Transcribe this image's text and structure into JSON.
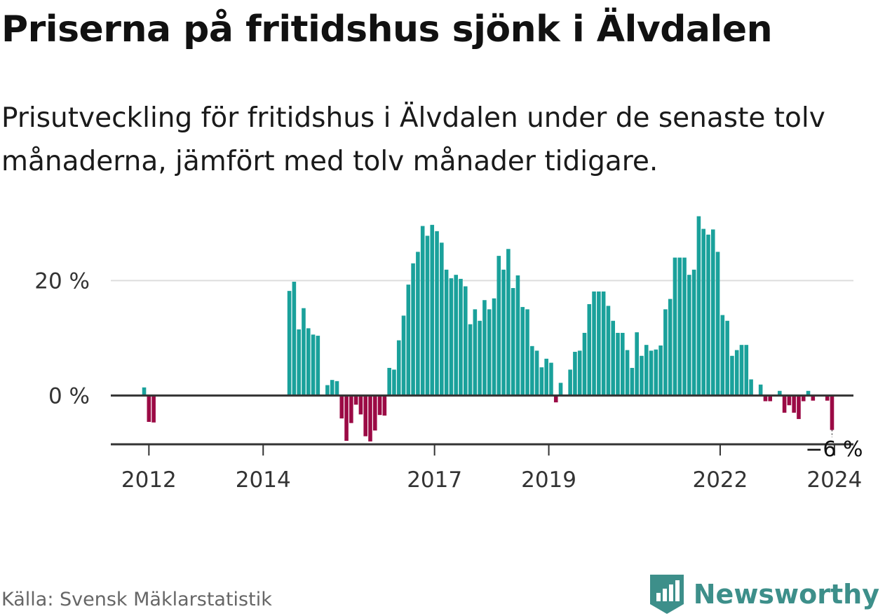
{
  "header": {
    "title": "Priserna på fritidshus sjönk i Älvdalen",
    "subtitle": "Prisutveckling för fritidshus i Älvdalen under de senaste tolv månaderna, jämfört med tolv månader tidigare."
  },
  "footer": {
    "source": "Källa: Svensk Mäklarstatistik",
    "brand": "Newsworthy"
  },
  "colors": {
    "positive": "#1aa19b",
    "negative": "#9b0a45",
    "grid": "#dddddd",
    "axis": "#333333",
    "brand": "#3d8f8a"
  },
  "chart_data": {
    "type": "bar",
    "title": "Priserna på fritidshus sjönk i Älvdalen",
    "xlabel": "",
    "ylabel": "",
    "x_domain": [
      2011.333,
      2024.333
    ],
    "ylim": [
      -8.5,
      32
    ],
    "y_ticks": [
      {
        "value": 0,
        "label": "0 %"
      },
      {
        "value": 20,
        "label": "20 %"
      }
    ],
    "x_ticks": [
      {
        "value": 2012,
        "label": "2012"
      },
      {
        "value": 2014,
        "label": "2014"
      },
      {
        "value": 2017,
        "label": "2017"
      },
      {
        "value": 2019,
        "label": "2019"
      },
      {
        "value": 2022,
        "label": "2022"
      },
      {
        "value": 2024,
        "label": "2024"
      }
    ],
    "annotation": {
      "text": "−6 %",
      "value": -6
    },
    "series": [
      {
        "name": "Prisutveckling",
        "points": [
          [
            2011.9167,
            1.4
          ],
          [
            2012.0,
            -4.6
          ],
          [
            2012.0833,
            -4.7
          ],
          [
            2014.4583,
            18.2
          ],
          [
            2014.5417,
            19.8
          ],
          [
            2014.625,
            11.5
          ],
          [
            2014.7083,
            15.2
          ],
          [
            2014.7917,
            11.7
          ],
          [
            2014.875,
            10.6
          ],
          [
            2014.9583,
            10.4
          ],
          [
            2015.125,
            1.8
          ],
          [
            2015.2083,
            2.7
          ],
          [
            2015.2917,
            2.5
          ],
          [
            2015.375,
            -4.0
          ],
          [
            2015.4583,
            -7.9
          ],
          [
            2015.5417,
            -4.8
          ],
          [
            2015.625,
            -1.6
          ],
          [
            2015.7083,
            -3.3
          ],
          [
            2015.7917,
            -7.1
          ],
          [
            2015.875,
            -8.0
          ],
          [
            2015.9583,
            -6.1
          ],
          [
            2016.0417,
            -3.4
          ],
          [
            2016.125,
            -3.5
          ],
          [
            2016.2083,
            4.8
          ],
          [
            2016.2917,
            4.5
          ],
          [
            2016.375,
            9.6
          ],
          [
            2016.4583,
            13.9
          ],
          [
            2016.5417,
            19.3
          ],
          [
            2016.625,
            23.0
          ],
          [
            2016.7083,
            25.0
          ],
          [
            2016.7917,
            29.5
          ],
          [
            2016.875,
            27.8
          ],
          [
            2016.9583,
            29.7
          ],
          [
            2017.0417,
            28.6
          ],
          [
            2017.125,
            26.6
          ],
          [
            2017.2083,
            21.9
          ],
          [
            2017.2917,
            20.4
          ],
          [
            2017.375,
            21.0
          ],
          [
            2017.4583,
            20.3
          ],
          [
            2017.5417,
            19.0
          ],
          [
            2017.625,
            12.4
          ],
          [
            2017.7083,
            15.0
          ],
          [
            2017.7917,
            13.0
          ],
          [
            2017.875,
            16.6
          ],
          [
            2017.9583,
            15.0
          ],
          [
            2018.0417,
            16.9
          ],
          [
            2018.125,
            24.3
          ],
          [
            2018.2083,
            21.9
          ],
          [
            2018.2917,
            25.5
          ],
          [
            2018.375,
            18.7
          ],
          [
            2018.4583,
            20.9
          ],
          [
            2018.5417,
            15.4
          ],
          [
            2018.625,
            15.0
          ],
          [
            2018.7083,
            8.6
          ],
          [
            2018.7917,
            7.8
          ],
          [
            2018.875,
            4.9
          ],
          [
            2018.9583,
            6.4
          ],
          [
            2019.0417,
            5.7
          ],
          [
            2019.125,
            -1.2
          ],
          [
            2019.2083,
            2.2
          ],
          [
            2019.3751,
            4.5
          ],
          [
            2019.4583,
            7.6
          ],
          [
            2019.5417,
            7.8
          ],
          [
            2019.625,
            10.9
          ],
          [
            2019.7083,
            15.9
          ],
          [
            2019.7917,
            18.1
          ],
          [
            2019.875,
            18.1
          ],
          [
            2019.9583,
            18.1
          ],
          [
            2020.0417,
            15.6
          ],
          [
            2020.125,
            13.0
          ],
          [
            2020.2083,
            10.9
          ],
          [
            2020.2917,
            10.9
          ],
          [
            2020.375,
            7.9
          ],
          [
            2020.4583,
            4.8
          ],
          [
            2020.5417,
            11.0
          ],
          [
            2020.625,
            6.9
          ],
          [
            2020.7083,
            8.8
          ],
          [
            2020.7917,
            7.8
          ],
          [
            2020.875,
            8.0
          ],
          [
            2020.9583,
            8.7
          ],
          [
            2021.0417,
            15.0
          ],
          [
            2021.125,
            16.8
          ],
          [
            2021.2083,
            24.0
          ],
          [
            2021.2917,
            24.0
          ],
          [
            2021.375,
            24.0
          ],
          [
            2021.4583,
            21.0
          ],
          [
            2021.5417,
            21.9
          ],
          [
            2021.625,
            31.2
          ],
          [
            2021.7083,
            29.0
          ],
          [
            2021.7917,
            28.0
          ],
          [
            2021.875,
            28.9
          ],
          [
            2021.9583,
            25.0
          ],
          [
            2022.0417,
            14.0
          ],
          [
            2022.125,
            13.0
          ],
          [
            2022.2083,
            6.9
          ],
          [
            2022.2917,
            7.9
          ],
          [
            2022.375,
            8.8
          ],
          [
            2022.4583,
            8.8
          ],
          [
            2022.5417,
            2.8
          ],
          [
            2022.7083,
            1.9
          ],
          [
            2022.7917,
            -1.0
          ],
          [
            2022.875,
            -1.0
          ],
          [
            2023.0417,
            0.8
          ],
          [
            2023.125,
            -3.0
          ],
          [
            2023.2083,
            -1.7
          ],
          [
            2023.2917,
            -3.0
          ],
          [
            2023.375,
            -4.1
          ],
          [
            2023.4583,
            -1.0
          ],
          [
            2023.5417,
            0.8
          ],
          [
            2023.625,
            -0.9
          ],
          [
            2023.875,
            -0.9
          ],
          [
            2023.9583,
            -6.0
          ]
        ]
      }
    ]
  }
}
